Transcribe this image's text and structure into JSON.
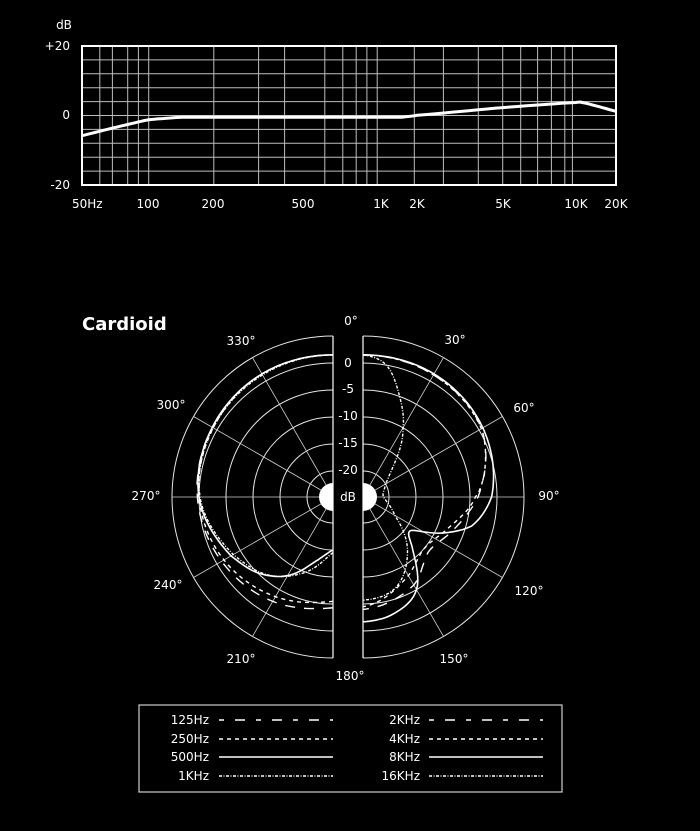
{
  "chart_data": [
    {
      "type": "line",
      "ylabel": "dB",
      "xscale": "log",
      "ylim": [
        -20,
        20
      ],
      "y_tick_labels": [
        "+20",
        "0",
        "-20"
      ],
      "x_tick_labels": [
        "50Hz",
        "100",
        "200",
        "500",
        "1K",
        "2K",
        "5K",
        "10K",
        "20K"
      ],
      "x_tick_values": [
        50,
        100,
        200,
        500,
        1000,
        2000,
        5000,
        10000,
        20000
      ],
      "grid": true,
      "series": [
        {
          "x": [
            50,
            70,
            100,
            140,
            200,
            500,
            1000,
            1500,
            2000,
            5000,
            10000,
            11000,
            20000
          ],
          "y": [
            -5.8,
            -3.5,
            -1.2,
            -0.5,
            -0.5,
            -0.5,
            -0.5,
            -0.5,
            0,
            2.3,
            3.8,
            3.9,
            1.2
          ]
        }
      ]
    },
    {
      "type": "polar",
      "title": "Cardioid",
      "angle_labels": [
        "0°",
        "30°",
        "60°",
        "90°",
        "120°",
        "150°",
        "180°",
        "210°",
        "240°",
        "270°",
        "300°",
        "330°"
      ],
      "radial_labels": [
        "0",
        "-5",
        "-10",
        "-15",
        "-20"
      ],
      "radial_unit": "dB",
      "rlim": [
        -20,
        5
      ],
      "grid": true,
      "legend_position": "bottom",
      "series": [
        {
          "name": "125Hz",
          "style": "long-dash",
          "angles": [
            180,
            210,
            240,
            270,
            300,
            330,
            360
          ],
          "db": [
            -4.3,
            -2.5,
            -1,
            0.3,
            1,
            1.5,
            1.5
          ]
        },
        {
          "name": "250Hz",
          "style": "short-dash",
          "angles": [
            180,
            210,
            240,
            270,
            300,
            330,
            360
          ],
          "db": [
            -5.5,
            -3.5,
            -1.5,
            0,
            0.8,
            1.5,
            1.5
          ]
        },
        {
          "name": "500Hz",
          "style": "solid",
          "angles": [
            180,
            195,
            210,
            225,
            240,
            270,
            300,
            330,
            360
          ],
          "db": [
            -15,
            -12.5,
            -8,
            -5,
            -3,
            0,
            1,
            1.5,
            1.5
          ]
        },
        {
          "name": "1KHz",
          "style": "dash-dot",
          "angles": [
            180,
            200,
            220,
            240,
            270,
            300,
            330,
            360
          ],
          "db": [
            -14.5,
            -10,
            -6,
            -3.5,
            -0.2,
            0.8,
            1.3,
            1.5
          ]
        },
        {
          "name": "2KHz",
          "style": "long-dash",
          "angles": [
            0,
            30,
            60,
            90,
            110,
            130,
            150,
            180
          ],
          "db": [
            1.5,
            1.3,
            0.5,
            -3.5,
            -7,
            -9,
            -6,
            -4
          ]
        },
        {
          "name": "4KHz",
          "style": "short-dash",
          "angles": [
            0,
            30,
            60,
            80,
            90,
            110,
            130,
            150,
            180
          ],
          "db": [
            1.5,
            1.3,
            0.5,
            -2,
            -4,
            -8,
            -10,
            -8,
            -4.5
          ]
        },
        {
          "name": "8KHz",
          "style": "solid",
          "angles": [
            0,
            30,
            60,
            90,
            105,
            115,
            125,
            135,
            150,
            165,
            180
          ],
          "db": [
            1.5,
            1.5,
            0.8,
            -1,
            -4,
            -9,
            -14,
            -12,
            -5,
            -2.5,
            -1.7
          ]
        },
        {
          "name": "16KHz",
          "style": "dash-dot",
          "angles": [
            0,
            10,
            20,
            30,
            45,
            60,
            90,
            120,
            140,
            160,
            180
          ],
          "db": [
            1.5,
            0,
            -5,
            -10,
            -17,
            -20,
            -21,
            -18,
            -12,
            -7,
            -5.7
          ]
        }
      ]
    }
  ],
  "colors": {
    "background": "#000000",
    "foreground": "#ffffff",
    "grid": "#bfbfbf"
  }
}
